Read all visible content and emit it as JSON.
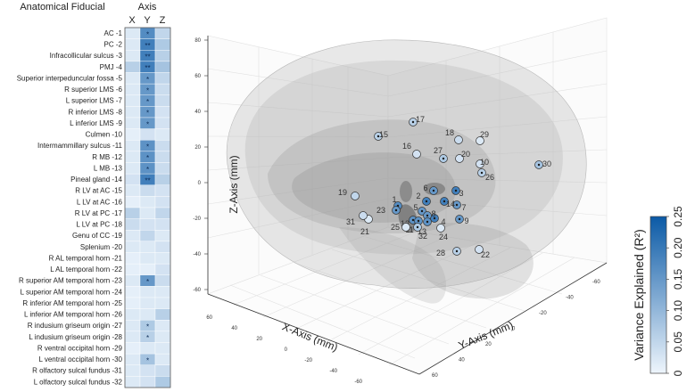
{
  "chart_data": [
    {
      "type": "heatmap",
      "title": "Anatomical Fiducial",
      "axis_title": "Axis",
      "columns": [
        "X",
        "Y",
        "Z"
      ],
      "rows": [
        {
          "label": "AC -1",
          "values": [
            0.02,
            0.17,
            0.05
          ],
          "sig": [
            "",
            "*",
            ""
          ]
        },
        {
          "label": "PC -2",
          "values": [
            0.02,
            0.19,
            0.07
          ],
          "sig": [
            "",
            "**",
            ""
          ]
        },
        {
          "label": "Infracollicular sulcus -3",
          "values": [
            0.02,
            0.19,
            0.06
          ],
          "sig": [
            "",
            "**",
            ""
          ]
        },
        {
          "label": "PMJ -4",
          "values": [
            0.06,
            0.19,
            0.08
          ],
          "sig": [
            "",
            "**",
            ""
          ]
        },
        {
          "label": "Superior interpeduncular fossa -5",
          "values": [
            0.02,
            0.15,
            0.05
          ],
          "sig": [
            "",
            "*",
            ""
          ]
        },
        {
          "label": "R superior LMS -6",
          "values": [
            0.02,
            0.15,
            0.04
          ],
          "sig": [
            "",
            "*",
            ""
          ]
        },
        {
          "label": "L superior LMS -7",
          "values": [
            0.02,
            0.15,
            0.04
          ],
          "sig": [
            "",
            "*",
            ""
          ]
        },
        {
          "label": "R inferior LMS -8",
          "values": [
            0.02,
            0.15,
            0.03
          ],
          "sig": [
            "",
            "*",
            ""
          ]
        },
        {
          "label": "L inferior LMS -9",
          "values": [
            0.02,
            0.15,
            0.03
          ],
          "sig": [
            "",
            "*",
            ""
          ]
        },
        {
          "label": "Culmen -10",
          "values": [
            0.01,
            0.03,
            0.02
          ],
          "sig": [
            "",
            "",
            ""
          ]
        },
        {
          "label": "Intermammillary sulcus -11",
          "values": [
            0.02,
            0.16,
            0.04
          ],
          "sig": [
            "",
            "*",
            ""
          ]
        },
        {
          "label": "R MB -12",
          "values": [
            0.02,
            0.16,
            0.04
          ],
          "sig": [
            "",
            "*",
            ""
          ]
        },
        {
          "label": "L MB -13",
          "values": [
            0.02,
            0.16,
            0.04
          ],
          "sig": [
            "",
            "*",
            ""
          ]
        },
        {
          "label": "Pineal gland -14",
          "values": [
            0.03,
            0.19,
            0.06
          ],
          "sig": [
            "",
            "**",
            ""
          ]
        },
        {
          "label": "R LV at AC -15",
          "values": [
            0.02,
            0.04,
            0.03
          ],
          "sig": [
            "",
            "",
            ""
          ]
        },
        {
          "label": "L LV at AC -16",
          "values": [
            0.01,
            0.02,
            0.03
          ],
          "sig": [
            "",
            "",
            ""
          ]
        },
        {
          "label": "R LV at PC -17",
          "values": [
            0.06,
            0.02,
            0.05
          ],
          "sig": [
            "",
            "",
            ""
          ]
        },
        {
          "label": "L LV at PC -18",
          "values": [
            0.04,
            0.03,
            0.03
          ],
          "sig": [
            "",
            "",
            ""
          ]
        },
        {
          "label": "Genu of CC -19",
          "values": [
            0.02,
            0.05,
            0.02
          ],
          "sig": [
            "",
            "",
            ""
          ]
        },
        {
          "label": "Splenium -20",
          "values": [
            0.02,
            0.02,
            0.03
          ],
          "sig": [
            "",
            "",
            ""
          ]
        },
        {
          "label": "R AL temporal horn -21",
          "values": [
            0.01,
            0.02,
            0.02
          ],
          "sig": [
            "",
            "",
            ""
          ]
        },
        {
          "label": "L AL temporal horn -22",
          "values": [
            0.01,
            0.01,
            0.03
          ],
          "sig": [
            "",
            "",
            ""
          ]
        },
        {
          "label": "R superior AM temporal horn -23",
          "values": [
            0.02,
            0.15,
            0.04
          ],
          "sig": [
            "",
            "*",
            ""
          ]
        },
        {
          "label": "L superior AM temporal horn -24",
          "values": [
            0.01,
            0.02,
            0.02
          ],
          "sig": [
            "",
            "",
            ""
          ]
        },
        {
          "label": "R inferior AM temporal horn -25",
          "values": [
            0.01,
            0.02,
            0.02
          ],
          "sig": [
            "",
            "",
            ""
          ]
        },
        {
          "label": "L inferior AM temporal horn -26",
          "values": [
            0.02,
            0.02,
            0.06
          ],
          "sig": [
            "",
            "",
            ""
          ]
        },
        {
          "label": "R indusium griseum origin -27",
          "values": [
            0.02,
            0.07,
            0.02
          ],
          "sig": [
            "",
            "*",
            ""
          ]
        },
        {
          "label": "L indusium griseum origin -28",
          "values": [
            0.02,
            0.06,
            0.02
          ],
          "sig": [
            "",
            "*",
            ""
          ]
        },
        {
          "label": "R ventral occipital horn -29",
          "values": [
            0.01,
            0.02,
            0.02
          ],
          "sig": [
            "",
            "",
            ""
          ]
        },
        {
          "label": "L ventral occipital horn -30",
          "values": [
            0.02,
            0.08,
            0.02
          ],
          "sig": [
            "",
            "*",
            ""
          ]
        },
        {
          "label": "R olfactory sulcal fundus -31",
          "values": [
            0.02,
            0.03,
            0.04
          ],
          "sig": [
            "",
            "",
            ""
          ]
        },
        {
          "label": "L olfactory sulcal fundus -32",
          "values": [
            0.02,
            0.03,
            0.07
          ],
          "sig": [
            "",
            "",
            ""
          ]
        }
      ]
    },
    {
      "type": "scatter",
      "subtype": "3d",
      "xlabel": "X-Axis (mm)",
      "ylabel": "Y-Axis (mm)",
      "zlabel": "Z-Axis (mm)",
      "z_ticks": [
        "80",
        "60",
        "40",
        "20",
        "0",
        "-20",
        "-40",
        "-60"
      ],
      "x_ticks": [
        "60",
        "40",
        "20",
        "0",
        "-20",
        "-40",
        "-60"
      ],
      "y_ticks": [
        "60",
        "40",
        "20",
        "0",
        "-20",
        "-40",
        "-60"
      ],
      "points": [
        {
          "id": "1",
          "r2": 0.17
        },
        {
          "id": "2",
          "r2": 0.19
        },
        {
          "id": "3",
          "r2": 0.19
        },
        {
          "id": "4",
          "r2": 0.19
        },
        {
          "id": "5",
          "r2": 0.15
        },
        {
          "id": "6",
          "r2": 0.15
        },
        {
          "id": "7",
          "r2": 0.15
        },
        {
          "id": "8",
          "r2": 0.15
        },
        {
          "id": "9",
          "r2": 0.15
        },
        {
          "id": "10",
          "r2": 0.03
        },
        {
          "id": "11",
          "r2": 0.16
        },
        {
          "id": "12",
          "r2": 0.16
        },
        {
          "id": "13",
          "r2": 0.16
        },
        {
          "id": "14",
          "r2": 0.19
        },
        {
          "id": "15",
          "r2": 0.06
        },
        {
          "id": "16",
          "r2": 0.03
        },
        {
          "id": "17",
          "r2": 0.06
        },
        {
          "id": "18",
          "r2": 0.04
        },
        {
          "id": "19",
          "r2": 0.05
        },
        {
          "id": "20",
          "r2": 0.03
        },
        {
          "id": "21",
          "r2": 0.02
        },
        {
          "id": "22",
          "r2": 0.03
        },
        {
          "id": "23",
          "r2": 0.15
        },
        {
          "id": "24",
          "r2": 0.02
        },
        {
          "id": "25",
          "r2": 0.02
        },
        {
          "id": "26",
          "r2": 0.06
        },
        {
          "id": "27",
          "r2": 0.07
        },
        {
          "id": "28",
          "r2": 0.06
        },
        {
          "id": "29",
          "r2": 0.02
        },
        {
          "id": "30",
          "r2": 0.08
        },
        {
          "id": "31",
          "r2": 0.04
        },
        {
          "id": "32",
          "r2": 0.07
        }
      ]
    },
    {
      "type": "colorbar",
      "label": "Variance Explained (R²)",
      "range": [
        0,
        0.25
      ],
      "ticks": [
        "0",
        "0.05",
        "0.10",
        "0.15",
        "0.20",
        "0.25"
      ],
      "colors": [
        "#eef5fc",
        "#0b5aa6"
      ]
    }
  ]
}
